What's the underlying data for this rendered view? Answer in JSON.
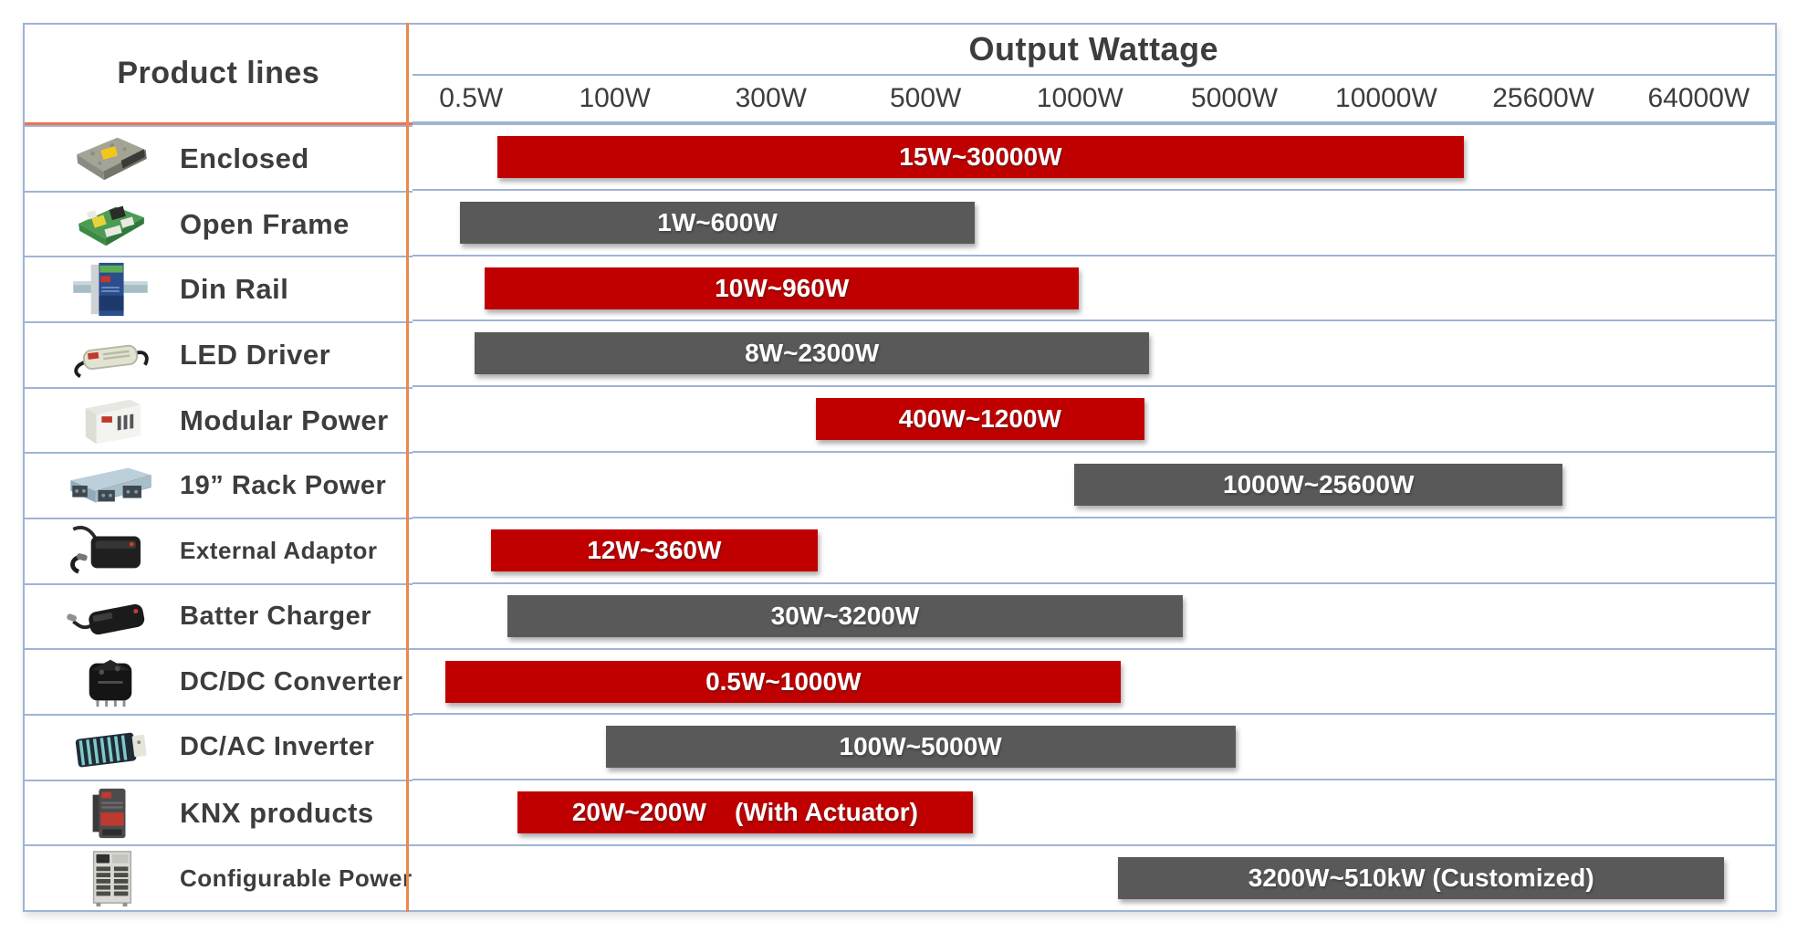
{
  "header": {
    "product_lines_label": "Product lines",
    "output_wattage_label": "Output Wattage"
  },
  "scale": {
    "labels": [
      "0.5W",
      "100W",
      "300W",
      "500W",
      "1000W",
      "5000W",
      "10000W",
      "25600W",
      "64000W"
    ]
  },
  "colors": {
    "bar_red": "#C00000",
    "bar_gray": "#595959",
    "grid_blue": "#9FB4D4",
    "divider_orange": "#E68A4F",
    "header_underline_salmon": "#EE7059",
    "text_dark": "#3D3D3D",
    "bar_text": "#FFFFFF"
  },
  "rows": [
    {
      "name": "Enclosed",
      "icon": "enclosed-psu",
      "bar": {
        "label": "15W~30000W",
        "color": "red"
      }
    },
    {
      "name": "Open Frame",
      "icon": "open-frame-psu",
      "bar": {
        "label": "1W~600W",
        "color": "gray"
      }
    },
    {
      "name": "Din Rail",
      "icon": "din-rail-psu",
      "bar": {
        "label": "10W~960W",
        "color": "red"
      }
    },
    {
      "name": "LED Driver",
      "icon": "led-driver",
      "bar": {
        "label": "8W~2300W",
        "color": "gray"
      }
    },
    {
      "name": "Modular Power",
      "icon": "modular-psu",
      "bar": {
        "label": "400W~1200W",
        "color": "red"
      }
    },
    {
      "name": "19”  Rack Power",
      "icon": "rack-power",
      "bar": {
        "label": "1000W~25600W",
        "color": "gray"
      }
    },
    {
      "name": "External Adaptor",
      "icon": "external-adaptor",
      "bar": {
        "label": "12W~360W",
        "color": "red"
      }
    },
    {
      "name": "Batter Charger",
      "icon": "battery-charger",
      "bar": {
        "label": "30W~3200W",
        "color": "gray"
      }
    },
    {
      "name": "DC/DC Converter",
      "icon": "dcdc-converter",
      "bar": {
        "label": "0.5W~1000W",
        "color": "red"
      }
    },
    {
      "name": "DC/AC Inverter",
      "icon": "dcac-inverter",
      "bar": {
        "label": "100W~5000W",
        "color": "gray"
      }
    },
    {
      "name": "KNX products",
      "icon": "knx-module",
      "bar": {
        "label": "20W~200W    (With Actuator)",
        "color": "red"
      }
    },
    {
      "name": "Configurable Power",
      "icon": "configurable-power",
      "bar": {
        "label": "3200W~510kW (Customized)",
        "color": "gray"
      }
    }
  ],
  "chart_data": {
    "type": "bar",
    "orientation": "horizontal-range",
    "title": "Output Wattage",
    "x_axis_labels": [
      "0.5W",
      "100W",
      "300W",
      "500W",
      "1000W",
      "5000W",
      "10000W",
      "25600W",
      "64000W"
    ],
    "x_axis_scale": "non-linear wattage scale",
    "grid": false,
    "categories": [
      "Enclosed",
      "Open Frame",
      "Din Rail",
      "LED Driver",
      "Modular Power",
      "19” Rack Power",
      "External Adaptor",
      "Batter Charger",
      "DC/DC Converter",
      "DC/AC Inverter",
      "KNX products",
      "Configurable Power"
    ],
    "series": [
      {
        "name": "Enclosed",
        "min_w": 15,
        "max_w": 30000,
        "range_label": "15W~30000W",
        "color": "#C00000"
      },
      {
        "name": "Open Frame",
        "min_w": 1,
        "max_w": 600,
        "range_label": "1W~600W",
        "color": "#595959"
      },
      {
        "name": "Din Rail",
        "min_w": 10,
        "max_w": 960,
        "range_label": "10W~960W",
        "color": "#C00000"
      },
      {
        "name": "LED Driver",
        "min_w": 8,
        "max_w": 2300,
        "range_label": "8W~2300W",
        "color": "#595959"
      },
      {
        "name": "Modular Power",
        "min_w": 400,
        "max_w": 1200,
        "range_label": "400W~1200W",
        "color": "#C00000"
      },
      {
        "name": "19” Rack Power",
        "min_w": 1000,
        "max_w": 25600,
        "range_label": "1000W~25600W",
        "color": "#595959"
      },
      {
        "name": "External Adaptor",
        "min_w": 12,
        "max_w": 360,
        "range_label": "12W~360W",
        "color": "#C00000"
      },
      {
        "name": "Batter Charger",
        "min_w": 30,
        "max_w": 3200,
        "range_label": "30W~3200W",
        "color": "#595959"
      },
      {
        "name": "DC/DC Converter",
        "min_w": 0.5,
        "max_w": 1000,
        "range_label": "0.5W~1000W",
        "color": "#C00000"
      },
      {
        "name": "DC/AC Inverter",
        "min_w": 100,
        "max_w": 5000,
        "range_label": "100W~5000W",
        "color": "#595959"
      },
      {
        "name": "KNX products",
        "min_w": 20,
        "max_w": 200,
        "range_label": "20W~200W (With Actuator)",
        "color": "#C00000",
        "note": "With Actuator"
      },
      {
        "name": "Configurable Power",
        "min_w": 3200,
        "max_w": 510000,
        "range_label": "3200W~510kW (Customized)",
        "color": "#595959",
        "note": "Customized"
      }
    ]
  }
}
